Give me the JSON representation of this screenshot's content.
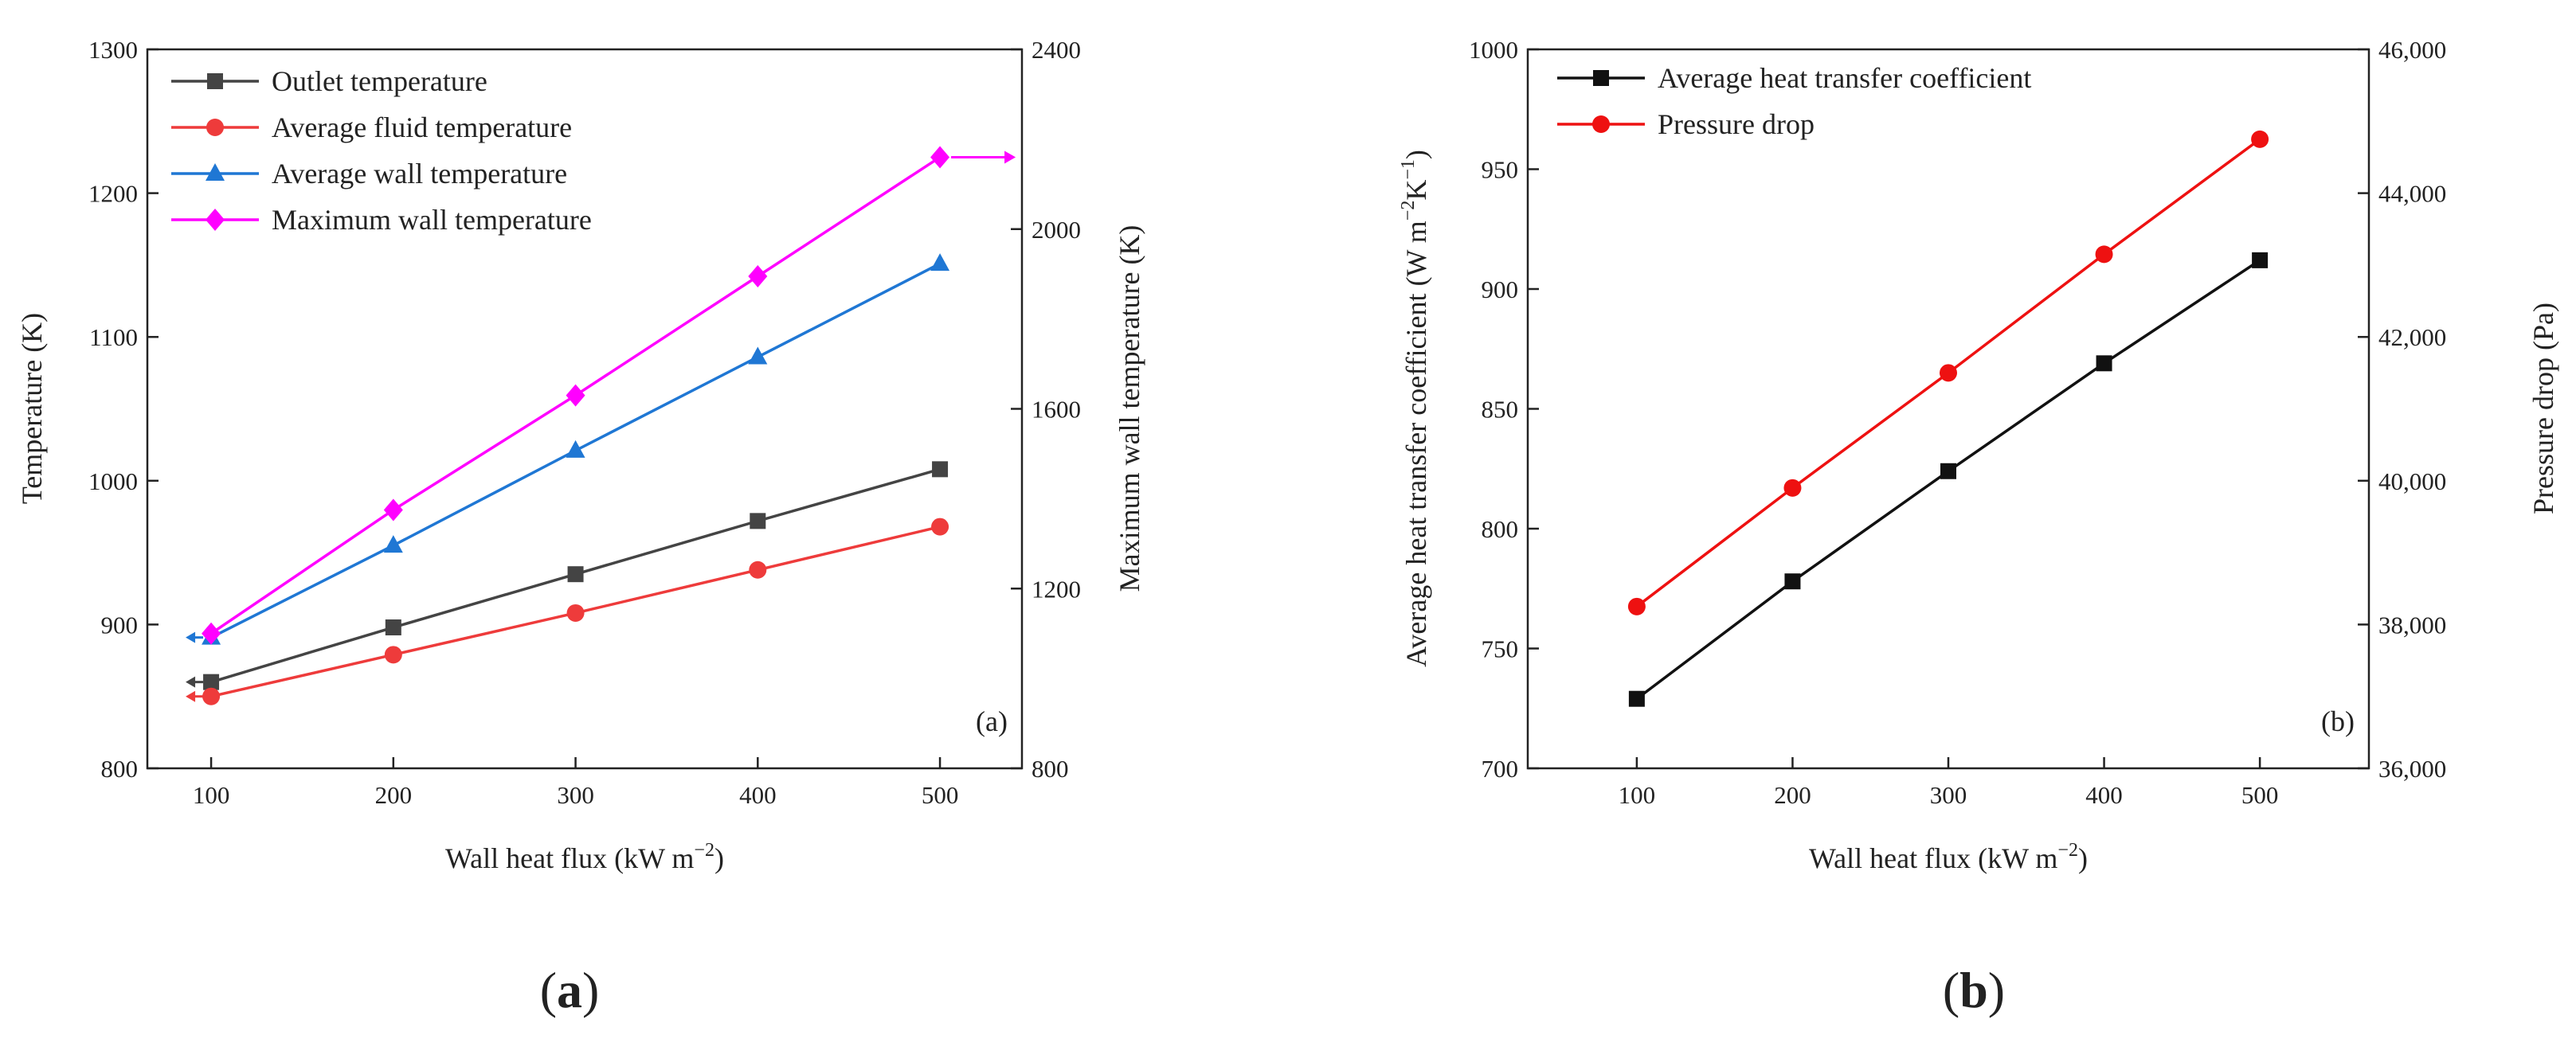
{
  "figure": {
    "caption_a": "a",
    "caption_b": "b"
  },
  "chart_data": [
    {
      "type": "line",
      "panel_label": "(a)",
      "xlabel_main": "Wall heat flux (kW m",
      "xlabel_sup": "−2",
      "xlabel_end": ")",
      "ylabel": "Temperature (K)",
      "y2label": "Maximum wall temperature (K)",
      "xlim": [
        65,
        545
      ],
      "ylim": [
        800,
        1300
      ],
      "y2lim": [
        800,
        2400
      ],
      "xticks": [
        100,
        200,
        300,
        400,
        500
      ],
      "xtick_labels": [
        "100",
        "200",
        "300",
        "400",
        "500"
      ],
      "yticks": [
        800,
        900,
        1000,
        1100,
        1200,
        1300
      ],
      "ytick_labels": [
        "800",
        "900",
        "1000",
        "1100",
        "1200",
        "1300"
      ],
      "y2ticks": [
        800,
        1200,
        1600,
        2000,
        2400
      ],
      "y2tick_labels": [
        "800",
        "1200",
        "1600",
        "2000",
        "2400"
      ],
      "x": [
        100,
        200,
        300,
        400,
        500
      ],
      "series": [
        {
          "name": "Outlet temperature",
          "color": "#444444",
          "marker": "square",
          "axis": "left",
          "values": [
            860,
            898,
            935,
            972,
            1008
          ]
        },
        {
          "name": "Average fluid temperature",
          "color": "#ee3b3b",
          "marker": "circle",
          "axis": "left",
          "values": [
            850,
            879,
            908,
            938,
            968
          ]
        },
        {
          "name": "Average wall temperature",
          "color": "#1f77d4",
          "marker": "triangle",
          "axis": "left",
          "values": [
            891,
            955,
            1021,
            1086,
            1151
          ]
        },
        {
          "name": "Maximum wall temperature",
          "color": "#ff00ff",
          "marker": "diamond",
          "axis": "right",
          "values": [
            1100,
            1375,
            1630,
            1895,
            2160
          ]
        }
      ],
      "legend": "top-left"
    },
    {
      "type": "line",
      "panel_label": "(b)",
      "xlabel_main": "Wall heat flux (kW m",
      "xlabel_sup": "−2",
      "xlabel_end": ")",
      "ylabel_main": "Average heat transfer coefficient (W m",
      "ylabel_sup1": "−2",
      "ylabel_mid": "K",
      "ylabel_sup2": "−1",
      "ylabel_end": ")",
      "y2label": "Pressure drop (Pa)",
      "xlim": [
        30,
        570
      ],
      "ylim": [
        700,
        1000
      ],
      "y2lim": [
        36000,
        46000
      ],
      "xticks": [
        100,
        200,
        300,
        400,
        500
      ],
      "xtick_labels": [
        "100",
        "200",
        "300",
        "400",
        "500"
      ],
      "yticks": [
        700,
        750,
        800,
        850,
        900,
        950,
        1000
      ],
      "ytick_labels": [
        "700",
        "750",
        "800",
        "850",
        "900",
        "950",
        "1000"
      ],
      "y2ticks": [
        36000,
        38000,
        40000,
        42000,
        44000,
        46000
      ],
      "y2tick_labels": [
        "36,000",
        "38,000",
        "40,000",
        "42,000",
        "44,000",
        "46,000"
      ],
      "x": [
        100,
        200,
        300,
        400,
        500
      ],
      "series": [
        {
          "name": "Average heat transfer coefficient",
          "color": "#111111",
          "marker": "square",
          "axis": "left",
          "values": [
            729,
            778,
            824,
            869,
            912
          ]
        },
        {
          "name": "Pressure drop",
          "color": "#ee1111",
          "marker": "circle",
          "axis": "right",
          "values": [
            38250,
            39900,
            41500,
            43150,
            44750
          ]
        }
      ],
      "legend": "top-left"
    }
  ]
}
